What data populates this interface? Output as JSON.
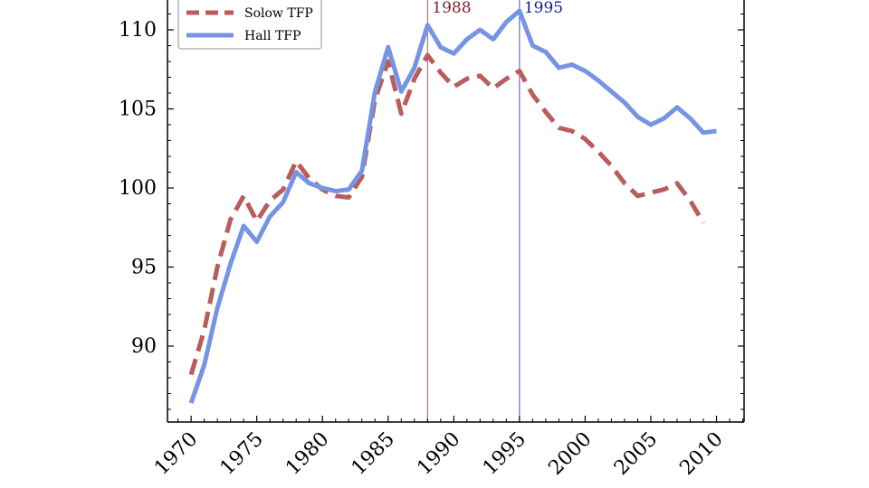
{
  "chart_data": {
    "type": "line",
    "title": "",
    "xlabel": "",
    "ylabel": "",
    "xlim": [
      1968.2,
      2012.1
    ],
    "ylim": [
      85.2,
      112.0
    ],
    "x_ticks": [
      1970,
      1975,
      1980,
      1985,
      1990,
      1995,
      2000,
      2005,
      2010
    ],
    "x_tick_labels": [
      "1970",
      "1975",
      "1980",
      "1985",
      "1990",
      "1995",
      "2000",
      "2005",
      "2010"
    ],
    "y_ticks": [
      90,
      95,
      100,
      105,
      110
    ],
    "y_tick_labels": [
      "90",
      "95",
      "100",
      "105",
      "110"
    ],
    "grid": false,
    "legend_position": "top-left",
    "annotations": [
      {
        "label": "1988",
        "x": 1988,
        "color": "#7a1f2a"
      },
      {
        "label": "1995",
        "x": 1995,
        "color": "#1a1a8c"
      }
    ],
    "series": [
      {
        "name": "Solow TFP",
        "color": "#b85c5c",
        "style": "dashed",
        "x": [
          1970,
          1971,
          1972,
          1973,
          1974,
          1975,
          1976,
          1977,
          1978,
          1979,
          1980,
          1981,
          1982,
          1983,
          1984,
          1985,
          1986,
          1987,
          1988,
          1989,
          1990,
          1991,
          1992,
          1993,
          1994,
          1995,
          1996,
          1997,
          1998,
          1999,
          2000,
          2001,
          2002,
          2003,
          2004,
          2005,
          2006,
          2007,
          2008,
          2009
        ],
        "y": [
          88.2,
          91.0,
          95.0,
          98.0,
          99.5,
          97.9,
          99.2,
          99.9,
          101.7,
          100.6,
          99.9,
          99.5,
          99.4,
          100.7,
          105.6,
          108.0,
          104.7,
          106.9,
          108.4,
          107.3,
          106.4,
          106.9,
          107.1,
          106.3,
          106.9,
          107.4,
          105.9,
          104.8,
          103.8,
          103.6,
          103.1,
          102.3,
          101.4,
          100.3,
          99.5,
          99.7,
          99.9,
          100.3,
          99.2,
          97.8
        ]
      },
      {
        "name": "Hall TFP",
        "color": "#7595e3",
        "style": "solid",
        "x": [
          1970,
          1971,
          1972,
          1973,
          1974,
          1975,
          1976,
          1977,
          1978,
          1979,
          1980,
          1981,
          1982,
          1983,
          1984,
          1985,
          1986,
          1987,
          1988,
          1989,
          1990,
          1991,
          1992,
          1993,
          1994,
          1995,
          1996,
          1997,
          1998,
          1999,
          2000,
          2001,
          2002,
          2003,
          2004,
          2005,
          2006,
          2007,
          2008,
          2009,
          2010
        ],
        "y": [
          86.4,
          88.8,
          92.4,
          95.2,
          97.6,
          96.6,
          98.2,
          99.1,
          101.0,
          100.3,
          100.0,
          99.8,
          99.9,
          101.1,
          106.1,
          108.9,
          106.1,
          107.6,
          110.3,
          108.9,
          108.5,
          109.4,
          110.0,
          109.4,
          110.5,
          111.2,
          109.0,
          108.6,
          107.6,
          107.8,
          107.4,
          106.8,
          106.1,
          105.4,
          104.5,
          104.0,
          104.4,
          105.1,
          104.4,
          103.5,
          103.6
        ]
      }
    ]
  }
}
